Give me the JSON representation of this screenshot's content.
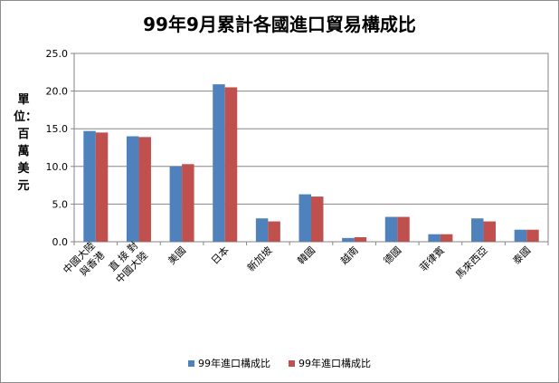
{
  "chart_data": {
    "type": "bar",
    "title": "99年9月累計各國進口貿易構成比",
    "ylabel": "單位：百萬美元",
    "xlabel": "",
    "ylim": [
      0,
      25
    ],
    "yticks": [
      "0.0",
      "5.0",
      "10.0",
      "15.0",
      "20.0",
      "25.0"
    ],
    "grid": true,
    "legend_position": "bottom",
    "categories": [
      [
        "中國大陸",
        "與香港"
      ],
      [
        "直 接 對",
        "中國大陸"
      ],
      [
        "美國"
      ],
      [
        "日本"
      ],
      [
        "新加坡"
      ],
      [
        "韓國"
      ],
      [
        "越南"
      ],
      [
        "德國"
      ],
      [
        "菲律賓"
      ],
      [
        "馬來西亞"
      ],
      [
        "泰國"
      ]
    ],
    "series": [
      {
        "name": "99年進口構成比",
        "color": "#4f81bd",
        "values": [
          14.7,
          14.0,
          10.0,
          20.9,
          3.1,
          6.3,
          0.5,
          3.3,
          1.0,
          3.1,
          1.6
        ]
      },
      {
        "name": "99年進口構成比",
        "color": "#c0504d",
        "values": [
          14.5,
          13.9,
          10.3,
          20.5,
          2.7,
          6.0,
          0.6,
          3.3,
          1.0,
          2.7,
          1.6
        ]
      }
    ]
  }
}
